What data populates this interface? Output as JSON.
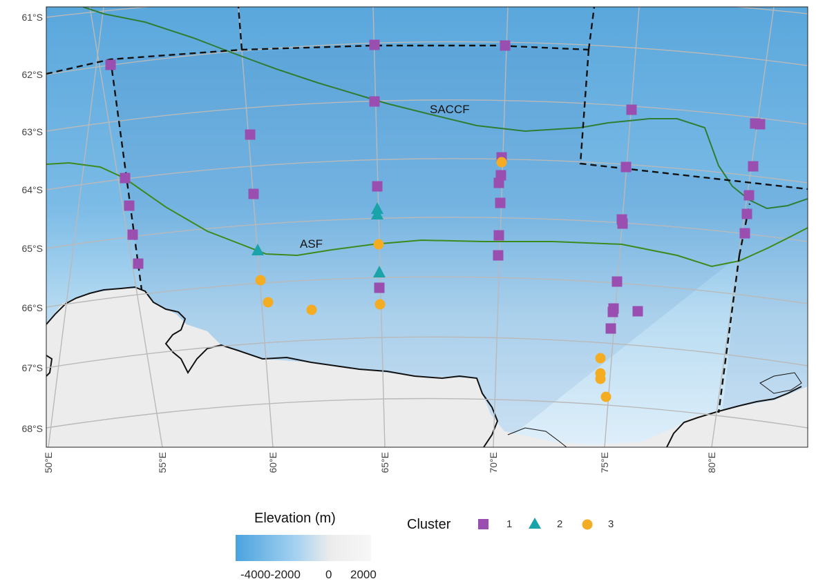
{
  "map": {
    "lat_labels": [
      "61°S",
      "62°S",
      "63°S",
      "64°S",
      "65°S",
      "66°S",
      "67°S",
      "68°S"
    ],
    "lon_labels": [
      "50°E",
      "55°E",
      "60°E",
      "65°E",
      "70°E",
      "75°E",
      "80°E"
    ],
    "fronts": [
      {
        "name": "SACCF",
        "color": "#2e7d32"
      },
      {
        "name": "ASF",
        "color": "#3c8a1c"
      }
    ]
  },
  "legend": {
    "elevation_title": "Elevation (m)",
    "elevation_ticks": [
      "-4000-2000",
      "0",
      "2000"
    ],
    "cluster_title": "Cluster",
    "clusters": [
      {
        "label": "1",
        "shape": "square",
        "color": "#9a4fb0"
      },
      {
        "label": "2",
        "shape": "triangle",
        "color": "#1aa3a8"
      },
      {
        "label": "3",
        "shape": "circle",
        "color": "#f4ac23"
      }
    ]
  },
  "colors": {
    "deep_ocean": "#5aa7dc",
    "shallow_ocean": "#c6e3f5",
    "land": "#ececec",
    "coastline": "#111111",
    "grid": "#b9b9b9"
  }
}
